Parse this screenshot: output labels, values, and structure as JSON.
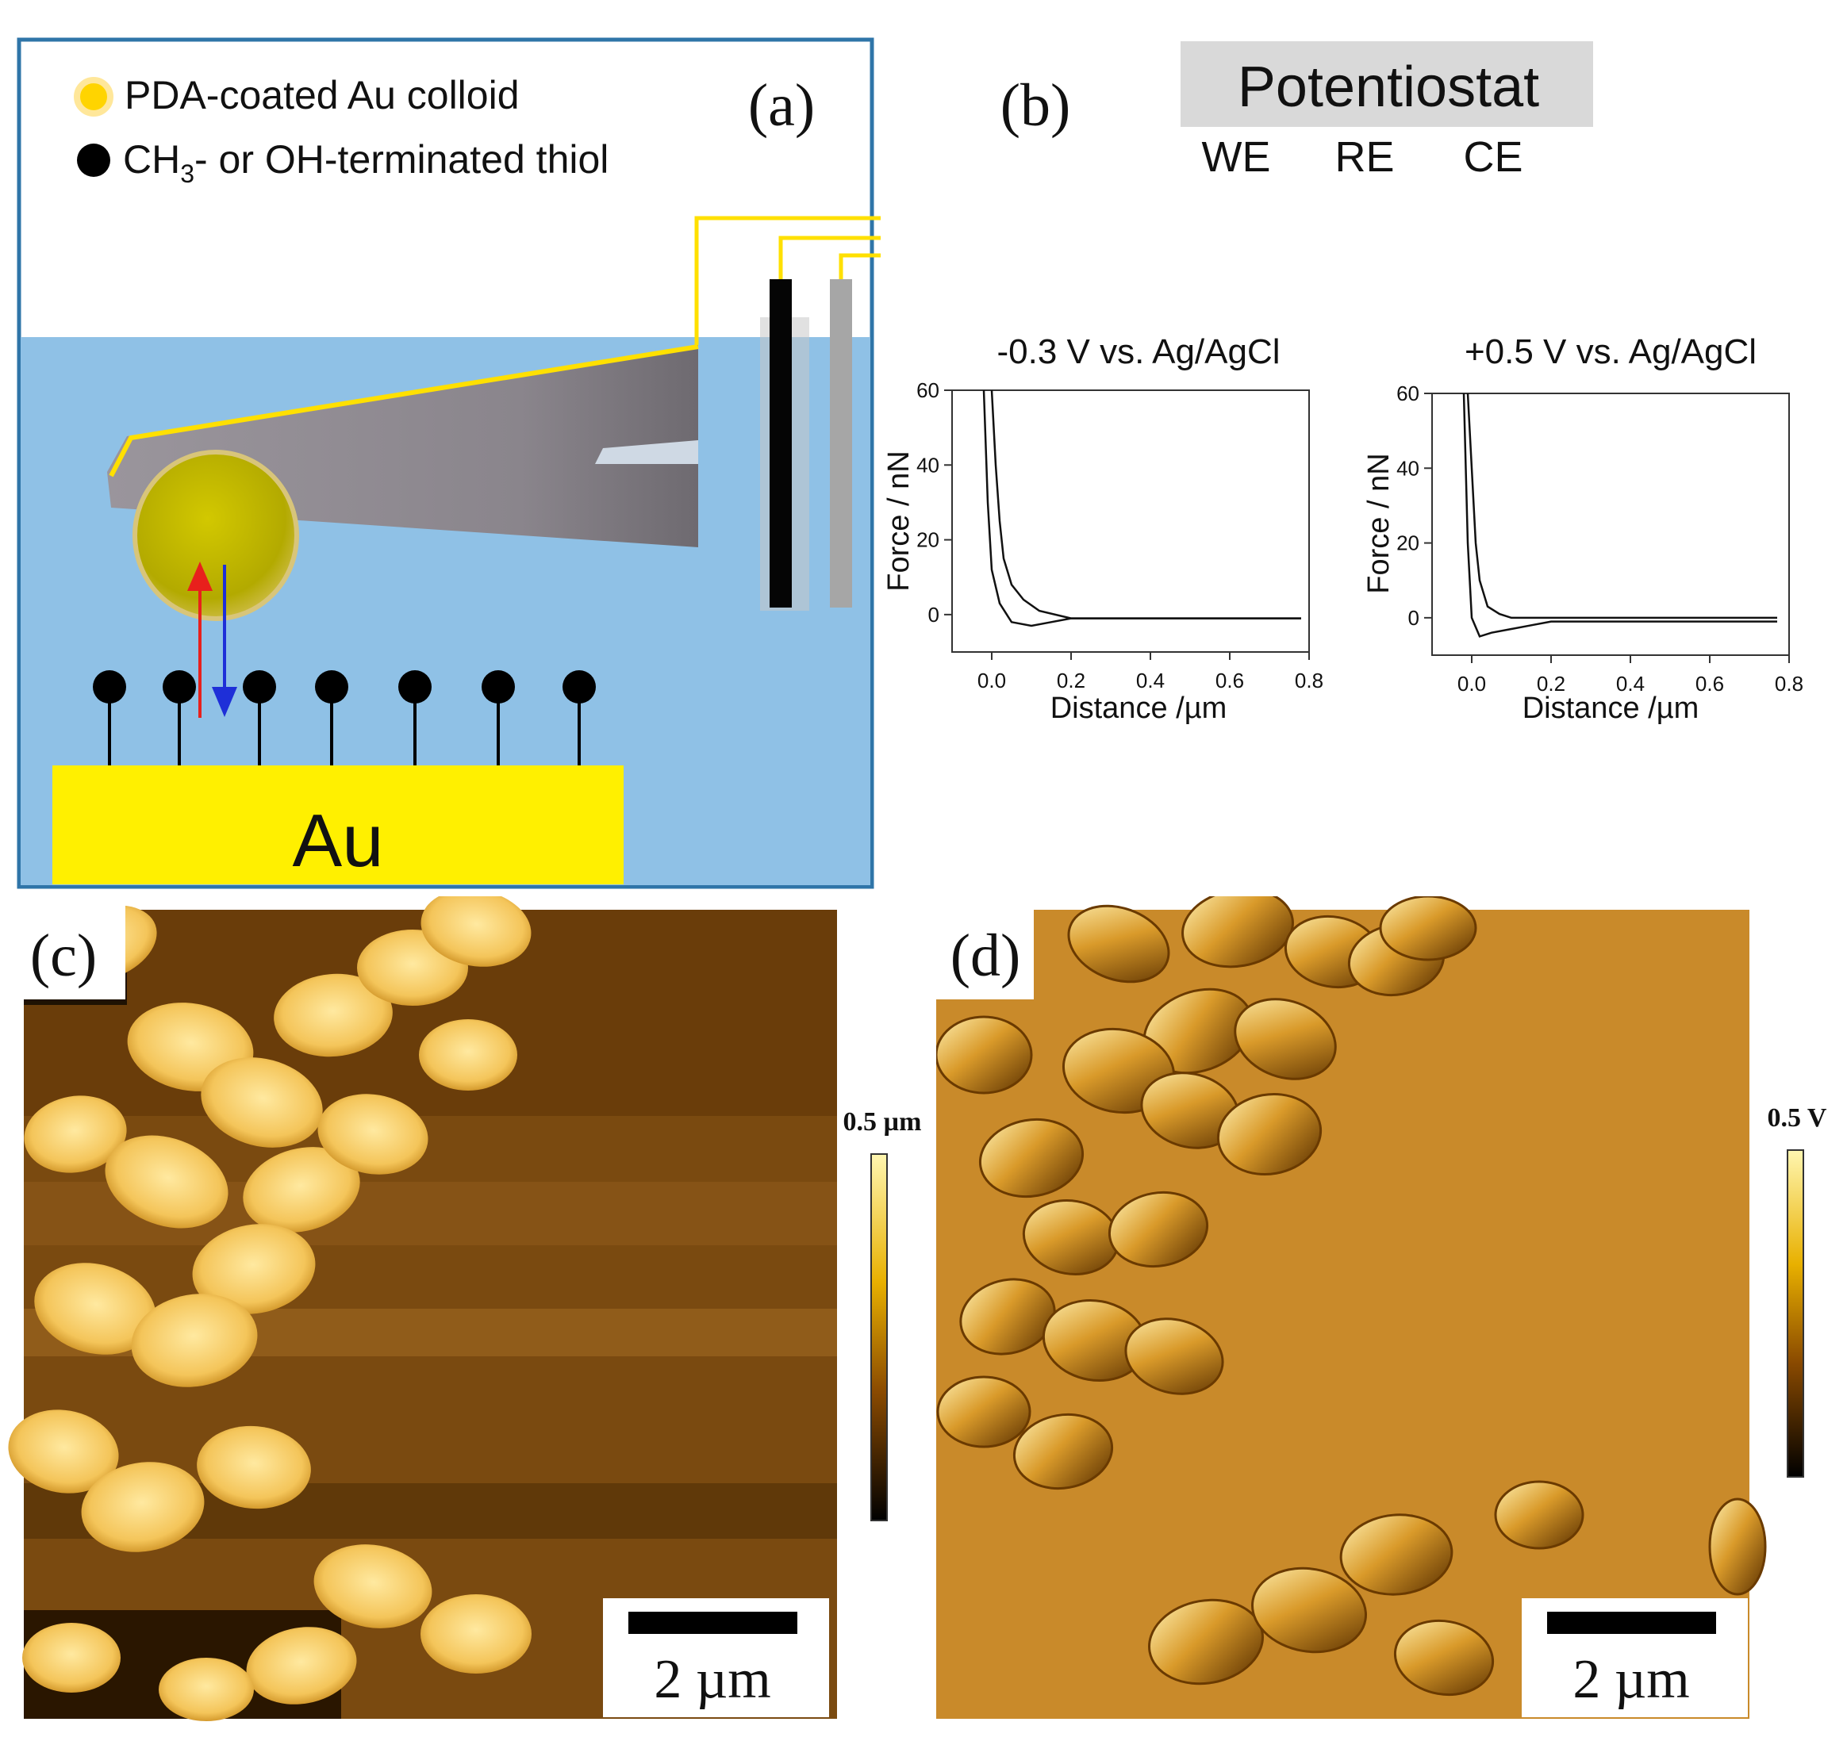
{
  "panel_a": {
    "label": "(a)",
    "legend": [
      {
        "marker": "yellow-circle",
        "text": "PDA-coated Au colloid"
      },
      {
        "marker": "black-circle",
        "text_main": "CH",
        "text_sub": "3",
        "text_rest": "- or OH-terminated thiol"
      }
    ],
    "substrate_label": "Au",
    "colors": {
      "water": "#8fc1e6",
      "gold": "#fff000",
      "border": "#2f75a8",
      "wire": "#ffe000",
      "cantilever": "#8e8a90",
      "colloid": "#b9b000",
      "arrow_up": "#e8201c",
      "arrow_down": "#1e2fd8"
    }
  },
  "panel_b": {
    "label": "(b)",
    "potentiostat": "Potentiostat",
    "electrodes": [
      "WE",
      "RE",
      "CE"
    ],
    "plots": [
      {
        "title": "-0.3 V vs. Ag/AgCl",
        "xlabel": "Distance /µm",
        "ylabel": "Force / nN",
        "xticks": [
          "0.0",
          "0.2",
          "0.4",
          "0.6",
          "0.8"
        ],
        "yticks": [
          "0",
          "20",
          "40",
          "60"
        ]
      },
      {
        "title": "+0.5 V vs. Ag/AgCl",
        "xlabel": "Distance /µm",
        "ylabel": "Force / nN",
        "xticks": [
          "0.0",
          "0.2",
          "0.4",
          "0.6",
          "0.8"
        ],
        "yticks": [
          "0",
          "20",
          "40",
          "60"
        ]
      }
    ]
  },
  "panel_c": {
    "label": "(c)",
    "colorbar_label": "0.5 µm",
    "scalebar_label": "2 µm"
  },
  "panel_d": {
    "label": "(d)",
    "colorbar_label": "0.5 V",
    "scalebar_label": "2 µm"
  },
  "chart_data": [
    {
      "type": "line",
      "title": "-0.3 V vs. Ag/AgCl",
      "xlabel": "Distance /µm",
      "ylabel": "Force / nN",
      "xlim": [
        -0.1,
        0.8
      ],
      "ylim": [
        -10,
        60
      ],
      "series": [
        {
          "x": [
            0.0,
            0.01,
            0.02,
            0.03,
            0.05,
            0.08,
            0.12,
            0.2,
            0.4,
            0.6,
            0.78
          ],
          "y": [
            60,
            40,
            25,
            15,
            8,
            4,
            1,
            -1,
            -1,
            -1,
            -1
          ]
        },
        {
          "x": [
            -0.02,
            -0.01,
            0.0,
            0.02,
            0.05,
            0.1,
            0.15,
            0.2,
            0.4,
            0.6,
            0.78
          ],
          "y": [
            60,
            30,
            12,
            3,
            -2,
            -3,
            -2,
            -1,
            -1,
            -1,
            -1
          ]
        }
      ]
    },
    {
      "type": "line",
      "title": "+0.5 V vs. Ag/AgCl",
      "xlabel": "Distance /µm",
      "ylabel": "Force / nN",
      "xlim": [
        -0.1,
        0.8
      ],
      "ylim": [
        -10,
        60
      ],
      "series": [
        {
          "x": [
            -0.01,
            0.0,
            0.01,
            0.02,
            0.04,
            0.07,
            0.1,
            0.2,
            0.4,
            0.6,
            0.77
          ],
          "y": [
            60,
            40,
            20,
            10,
            3,
            1,
            0,
            0,
            0,
            0,
            0
          ]
        },
        {
          "x": [
            -0.02,
            -0.01,
            0.0,
            0.02,
            0.05,
            0.1,
            0.15,
            0.2,
            0.3,
            0.4,
            0.77
          ],
          "y": [
            60,
            20,
            0,
            -5,
            -4,
            -3,
            -2,
            -1,
            -1,
            -1,
            -1
          ]
        }
      ]
    }
  ]
}
